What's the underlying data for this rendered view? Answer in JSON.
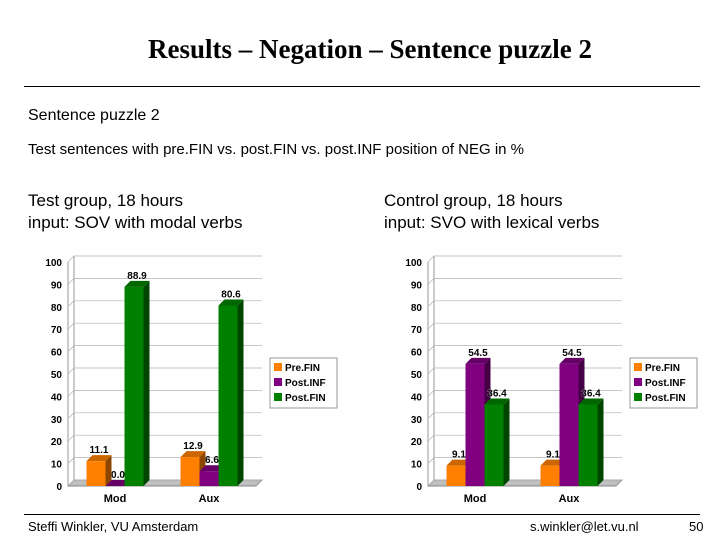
{
  "slide": {
    "title": "Results – Negation – Sentence puzzle 2",
    "subtitle": "Sentence puzzle 2",
    "description": "Test sentences with pre.FIN vs. post.FIN vs. post.INF position of NEG in %",
    "footer_left": "Steffi Winkler, VU Amsterdam",
    "footer_center": "s.winkler@let.vu.nl",
    "page_number": "50"
  },
  "groups": [
    {
      "line1": "Test group, 18 hours",
      "line2": "input: SOV with modal verbs"
    },
    {
      "line1": "Control group, 18 hours",
      "line2": "input: SVO with lexical verbs"
    }
  ],
  "chart_data": [
    {
      "type": "bar",
      "categories": [
        "Mod",
        "Aux"
      ],
      "series": [
        {
          "name": "Pre.FIN",
          "color": "#ff7f00",
          "values": [
            11.1,
            12.9
          ]
        },
        {
          "name": "Post.INF",
          "color": "#800080",
          "values": [
            0.0,
            6.6
          ]
        },
        {
          "name": "Post.FIN",
          "color": "#008000",
          "values": [
            88.9,
            80.6
          ]
        }
      ],
      "ylim": [
        0,
        100
      ],
      "yticks": [
        0,
        10,
        20,
        30,
        40,
        50,
        60,
        70,
        80,
        90,
        100
      ],
      "grid": true,
      "legend": "right",
      "data_labels": [
        [
          "11.1",
          "0.0",
          "88.9"
        ],
        [
          "12.9",
          "6.6",
          "80.6"
        ]
      ]
    },
    {
      "type": "bar",
      "categories": [
        "Mod",
        "Aux"
      ],
      "series": [
        {
          "name": "Pre.FIN",
          "color": "#ff7f00",
          "values": [
            9.1,
            9.1
          ]
        },
        {
          "name": "Post.INF",
          "color": "#800080",
          "values": [
            54.5,
            54.5
          ]
        },
        {
          "name": "Post.FIN",
          "color": "#008000",
          "values": [
            36.4,
            36.4
          ]
        }
      ],
      "ylim": [
        0,
        100
      ],
      "yticks": [
        0,
        10,
        20,
        30,
        40,
        50,
        60,
        70,
        80,
        90,
        100
      ],
      "grid": true,
      "legend": "right",
      "data_labels": [
        [
          "9.1",
          "54.5",
          "36.4"
        ],
        [
          "9.1",
          "54.5",
          "36.4"
        ]
      ]
    }
  ]
}
